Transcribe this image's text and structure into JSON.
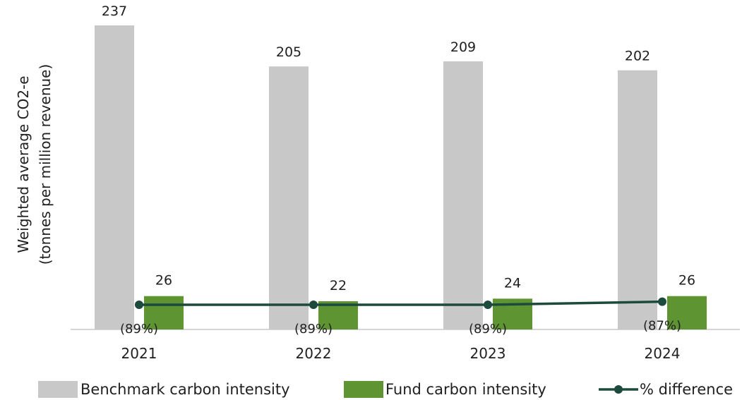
{
  "chart_data": {
    "type": "bar",
    "categories": [
      "2021",
      "2022",
      "2023",
      "2024"
    ],
    "ylabel_line1": "Weighted average CO2-e",
    "ylabel_line2": "(tonnes per million revenue)",
    "series": [
      {
        "name": "Benchmark carbon intensity",
        "type": "bar",
        "color": "#c8c8c8",
        "values": [
          237,
          205,
          209,
          202
        ],
        "labels": [
          "237",
          "205",
          "209",
          "202"
        ]
      },
      {
        "name": "Fund carbon intensity",
        "type": "bar",
        "color": "#5f9432",
        "values": [
          26,
          22,
          24,
          26
        ],
        "labels": [
          "26",
          "22",
          "24",
          "26"
        ]
      },
      {
        "name": "% difference",
        "type": "line",
        "color": "#1c4a3c",
        "values": [
          -89,
          -89,
          -89,
          -87
        ],
        "labels": [
          "(89%)",
          "(89%)",
          "(89%)",
          "(87%)"
        ]
      }
    ],
    "legend": {
      "position": "bottom",
      "items": [
        "Benchmark carbon intensity",
        "Fund carbon intensity",
        "% difference"
      ]
    },
    "grid": false
  }
}
